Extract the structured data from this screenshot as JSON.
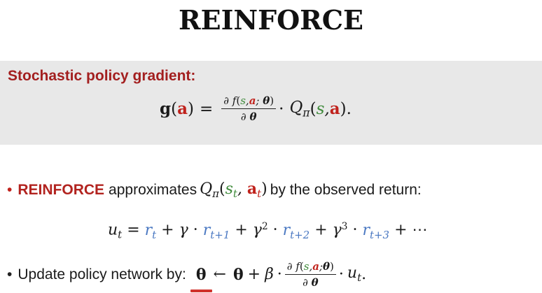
{
  "title": "REINFORCE",
  "panel": {
    "heading": "Stochastic policy gradient:"
  },
  "bullets": [
    {
      "keyword": "REINFORCE",
      "text_a": "approximates",
      "text_b": "by the observed return:"
    },
    {
      "text": "Update policy network by:"
    }
  ],
  "colors": {
    "heading_red": "#a31f1f",
    "action_red": "#c0221c",
    "state_green": "#3e8a3a",
    "reward_blue": "#4a78c2",
    "panel_gray": "#e8e8e8"
  }
}
